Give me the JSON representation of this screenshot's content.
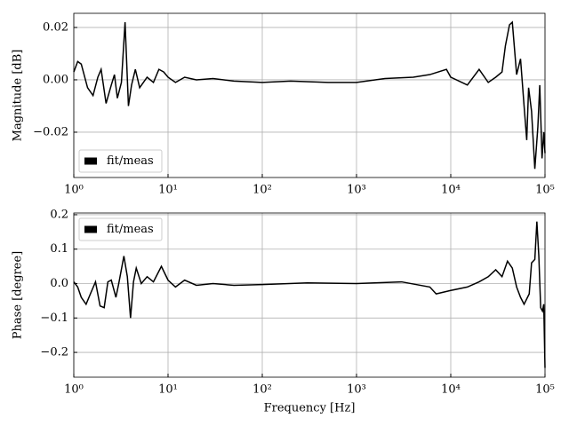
{
  "chart_data": [
    {
      "type": "line",
      "ylabel": "Magnitude [dB]",
      "xscale": "log",
      "grid": true,
      "legend": "lower left",
      "xlim": [
        1,
        100000
      ],
      "ylim": [
        -0.0373,
        0.0254
      ],
      "xticks": [
        {
          "value": 1,
          "label": "10⁰"
        },
        {
          "value": 10,
          "label": "10¹"
        },
        {
          "value": 100,
          "label": "10²"
        },
        {
          "value": 1000,
          "label": "10³"
        },
        {
          "value": 10000,
          "label": "10⁴"
        },
        {
          "value": 100000,
          "label": "10⁵"
        }
      ],
      "yticks": [
        {
          "value": -0.02,
          "label": "−0.02"
        },
        {
          "value": 0,
          "label": "0.00"
        },
        0.02
      ],
      "series": [
        {
          "name": "fit/meas",
          "color": "#000000",
          "x": [
            1.0,
            1.1,
            1.2,
            1.4,
            1.6,
            1.8,
            1.95,
            2.2,
            2.5,
            2.7,
            2.9,
            3.2,
            3.5,
            3.8,
            4.1,
            4.5,
            5,
            6,
            7,
            8,
            9,
            10,
            12,
            15,
            20,
            30,
            50,
            100,
            200,
            500,
            1000,
            2000,
            4000,
            6000,
            9000,
            10000,
            15000,
            20000,
            25000,
            30000,
            35000,
            38000,
            42000,
            45000,
            50000,
            55000,
            60000,
            64000,
            67000,
            72000,
            78000,
            84000,
            88000,
            93000,
            97000,
            100000
          ],
          "values": [
            0.003,
            0.007,
            0.006,
            -0.003,
            -0.006,
            0.001,
            0.004,
            -0.009,
            -0.002,
            0.002,
            -0.007,
            -0.001,
            0.022,
            -0.01,
            -0.002,
            0.004,
            -0.003,
            0.001,
            -0.001,
            0.004,
            0.003,
            0.001,
            -0.001,
            0.001,
            0,
            0.0005,
            -0.0005,
            -0.001,
            -0.0005,
            -0.001,
            -0.001,
            0.0005,
            0.001,
            0.002,
            0.004,
            0.001,
            -0.002,
            0.004,
            -0.001,
            0.001,
            0.003,
            0.013,
            0.021,
            0.022,
            0.002,
            0.008,
            -0.01,
            -0.023,
            -0.003,
            -0.012,
            -0.034,
            -0.018,
            -0.002,
            -0.03,
            -0.02,
            -0.028
          ]
        }
      ]
    },
    {
      "type": "line",
      "xlabel": "Frequency [Hz]",
      "ylabel": "Phase [degree]",
      "xscale": "log",
      "grid": true,
      "legend": "upper left",
      "xlim": [
        1,
        100000
      ],
      "ylim": [
        -0.272,
        0.205
      ],
      "xticks": [
        {
          "value": 1,
          "label": "10⁰"
        },
        {
          "value": 10,
          "label": "10¹"
        },
        {
          "value": 100,
          "label": "10²"
        },
        {
          "value": 1000,
          "label": "10³"
        },
        {
          "value": 10000,
          "label": "10⁴"
        },
        {
          "value": 100000,
          "label": "10⁵"
        }
      ],
      "yticks": [
        {
          "value": -0.2,
          "label": "−0.2"
        },
        {
          "value": -0.1,
          "label": "−0.1"
        },
        {
          "value": 0,
          "label": "0.0"
        },
        0.1,
        0.2
      ],
      "series": [
        {
          "name": "fit/meas",
          "color": "#000000",
          "x": [
            1.0,
            1.1,
            1.2,
            1.35,
            1.5,
            1.7,
            1.9,
            2.1,
            2.3,
            2.5,
            2.8,
            3.0,
            3.4,
            3.7,
            4.0,
            4.3,
            4.6,
            5.2,
            6,
            7,
            8.5,
            10,
            12,
            15,
            20,
            30,
            50,
            100,
            300,
            1000,
            3000,
            6000,
            7000,
            10000,
            15000,
            20000,
            25000,
            30000,
            35000,
            40000,
            45000,
            50000,
            55000,
            60000,
            68000,
            72000,
            78000,
            82000,
            86000,
            90000,
            94000,
            97000,
            100000
          ],
          "values": [
            0.005,
            -0.01,
            -0.04,
            -0.06,
            -0.03,
            0.005,
            -0.065,
            -0.07,
            0.005,
            0.01,
            -0.04,
            0.0,
            0.08,
            0.02,
            -0.1,
            0.005,
            0.045,
            0.0,
            0.02,
            0.005,
            0.05,
            0.01,
            -0.01,
            0.01,
            -0.005,
            0.0,
            -0.005,
            -0.003,
            0.002,
            0.0,
            0.005,
            -0.01,
            -0.03,
            -0.02,
            -0.01,
            0.005,
            0.02,
            0.04,
            0.02,
            0.065,
            0.045,
            -0.01,
            -0.04,
            -0.06,
            -0.03,
            0.06,
            0.07,
            0.18,
            0.08,
            -0.07,
            -0.08,
            -0.06,
            -0.245
          ]
        }
      ]
    }
  ]
}
